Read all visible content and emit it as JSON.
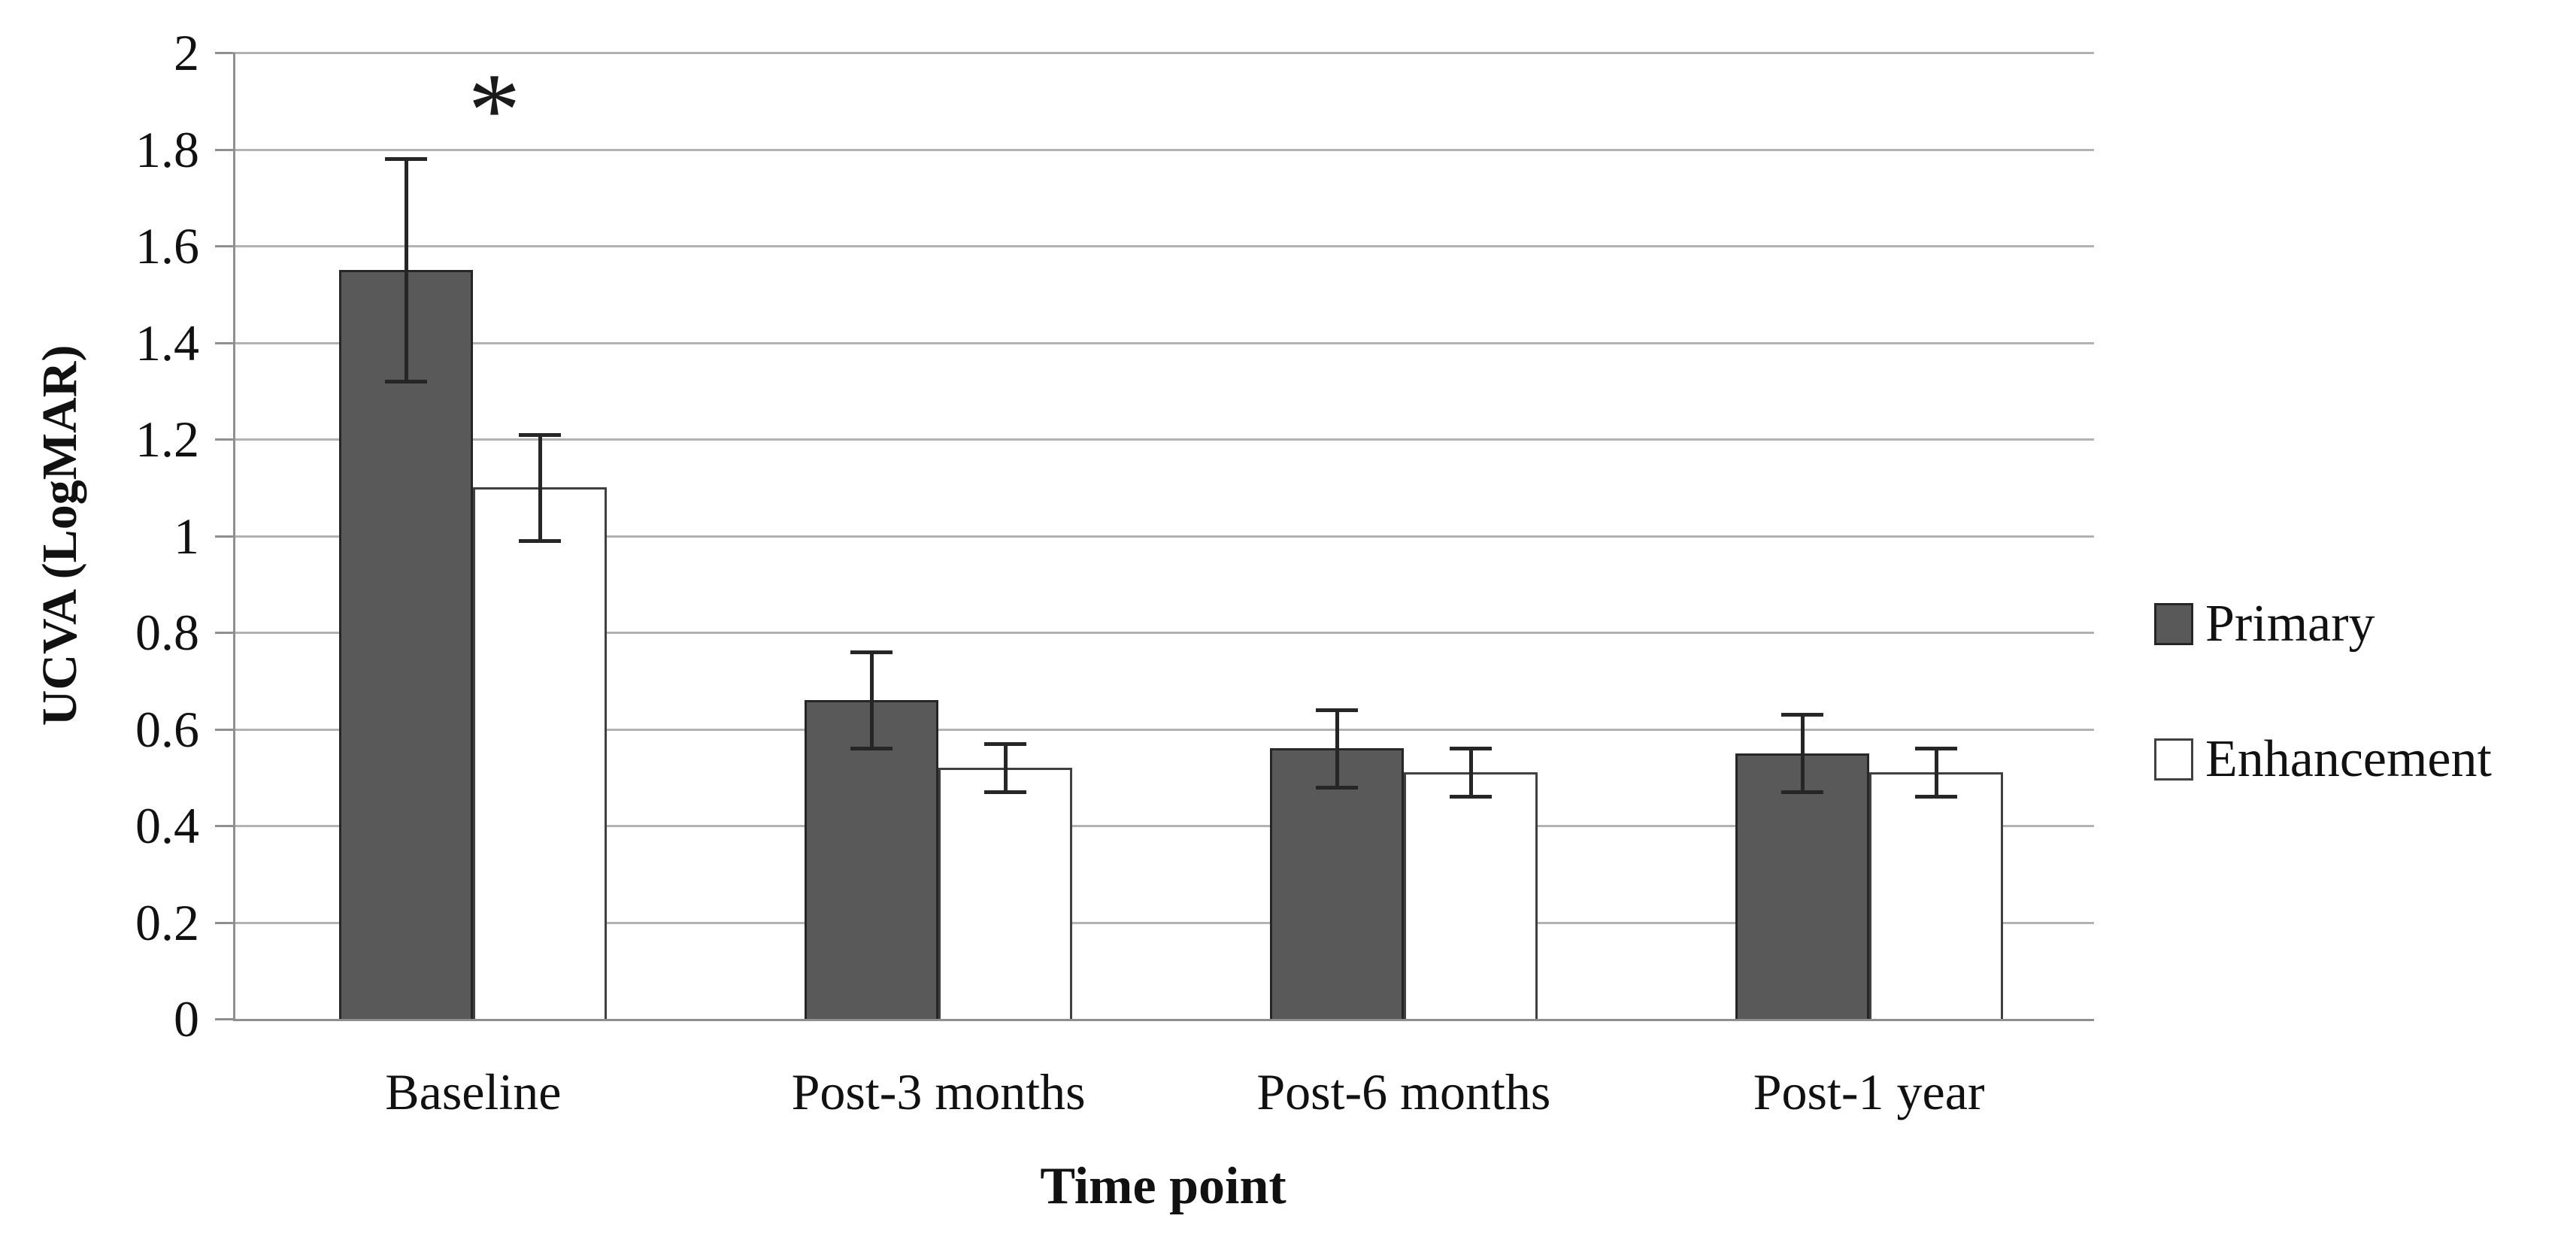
{
  "figure": {
    "background": "#ffffff",
    "plot_border": "none",
    "grid_color": "#b2b2b2",
    "axis_color": "#8f8f8f",
    "error_bar_color": "#262626",
    "text_color": "#111111"
  },
  "chart_data": {
    "type": "bar",
    "title": "",
    "xlabel": "Time point",
    "ylabel": "UCVA (LogMAR)",
    "ylim": [
      0,
      2
    ],
    "ytick_step": 0.2,
    "ytick_labels": [
      "0",
      "0.2",
      "0.4",
      "0.6",
      "0.8",
      "1",
      "1.2",
      "1.4",
      "1.6",
      "1.8",
      "2"
    ],
    "grid": true,
    "legend_position": "right",
    "categories": [
      "Baseline",
      "Post-3 months",
      "Post-6 months",
      "Post-1 year"
    ],
    "series": [
      {
        "name": "Primary",
        "fill": "#595959",
        "border": "#262626",
        "values": [
          1.55,
          0.66,
          0.56,
          0.55
        ],
        "errors": [
          0.23,
          0.1,
          0.08,
          0.08
        ]
      },
      {
        "name": "Enhancement",
        "fill": "#ffffff",
        "border": "#404040",
        "values": [
          1.1,
          0.52,
          0.51,
          0.51
        ],
        "errors": [
          0.11,
          0.05,
          0.05,
          0.05
        ]
      }
    ],
    "annotation": {
      "text": "*",
      "target_category": "Baseline",
      "y": 1.88
    }
  }
}
